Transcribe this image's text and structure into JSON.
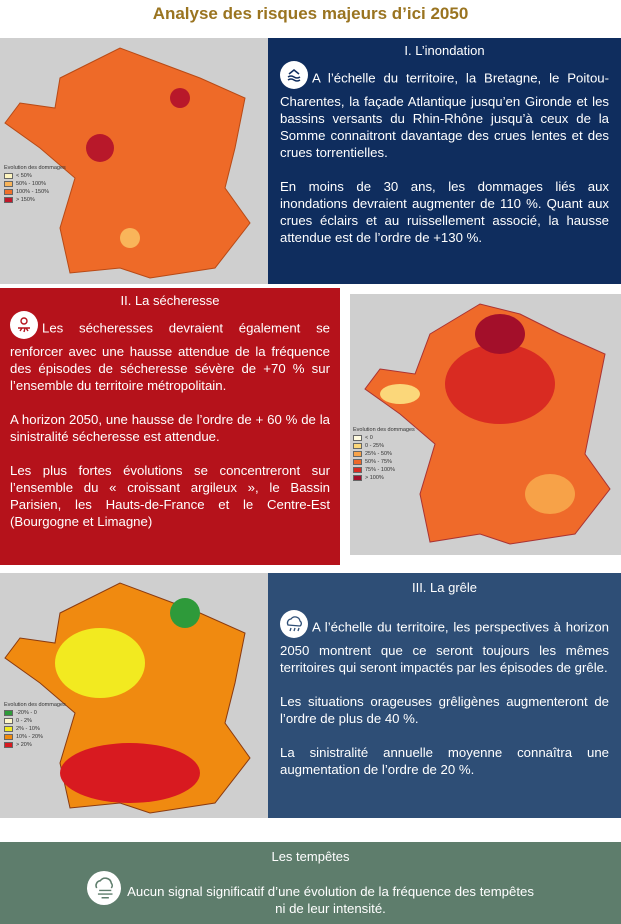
{
  "title": "Analyse des risques majeurs d’ici 2050",
  "inondation": {
    "heading": "I. L’inondation",
    "icon": "flood-icon",
    "paragraphs": [
      "A l’échelle du territoire, la Bretagne, le Poitou-Charentes, la façade Atlantique jusqu’en Gironde et les bassins versants du Rhin-Rhône jusqu’à ceux de la Somme connaitront davantage des crues lentes et des crues torrentielles.",
      "En moins de 30 ans, les dommages liés aux inondations devraient augmenter de 110 %. Quant aux crues éclairs et au ruissellement associé, la hausse attendue est de l’ordre de +130 %."
    ],
    "legend": {
      "title": "Evolution des dommages",
      "items": [
        {
          "label": "< 50%",
          "color": "#fdf5c0"
        },
        {
          "label": "50% - 100%",
          "color": "#f9b55a"
        },
        {
          "label": "100% - 150%",
          "color": "#f0702a"
        },
        {
          "label": "> 150%",
          "color": "#c0182a"
        }
      ]
    },
    "color": "#0f2d5e"
  },
  "secheresse": {
    "heading": "II. La sécheresse",
    "icon": "drought-icon",
    "paragraphs": [
      "Les sécheresses devraient également se renforcer avec une hausse attendue de la fréquence des épisodes de sécheresse sévère de +70 % sur l’ensemble du territoire métropolitain.",
      "A horizon 2050, une hausse de l’ordre de + 60 % de la sinistralité sécheresse est attendue.",
      "Les plus fortes évolutions se concentreront sur l’ensemble du « croissant argileux », le Bassin Parisien, les Hauts-de-France et le Centre-Est (Bourgogne et Limagne)"
    ],
    "legend": {
      "title": "Evolution des dommages",
      "items": [
        {
          "label": "< 0",
          "color": "#fffbe0"
        },
        {
          "label": "0 - 25%",
          "color": "#fbd77a"
        },
        {
          "label": "25% - 50%",
          "color": "#f7a248"
        },
        {
          "label": "50% - 75%",
          "color": "#ef6a2a"
        },
        {
          "label": "75% - 100%",
          "color": "#d92b22"
        },
        {
          "label": "> 100%",
          "color": "#a30f2a"
        }
      ]
    },
    "color": "#b5121b"
  },
  "grele": {
    "heading": "III. La grêle",
    "icon": "hail-icon",
    "paragraphs": [
      "A l’échelle du territoire, les perspectives à horizon 2050 montrent que ce seront toujours les mêmes territoires qui seront impactés par les épisodes de grêle.",
      "Les situations orageuses grêligènes augmenteront de l’ordre de plus de 40 %.",
      "La sinistralité annuelle moyenne connaîtra une augmentation de l’ordre de 20 %."
    ],
    "legend": {
      "title": "Evolution des dommages",
      "items": [
        {
          "label": "-20% - 0",
          "color": "#2e9a3a"
        },
        {
          "label": "0 - 2%",
          "color": "#fdf6c8"
        },
        {
          "label": "2% - 10%",
          "color": "#f2ea20"
        },
        {
          "label": "10% - 20%",
          "color": "#f08a10"
        },
        {
          "label": "> 20%",
          "color": "#d81a20"
        }
      ]
    },
    "color": "#2e4e76"
  },
  "tempetes": {
    "heading": "Les tempêtes",
    "icon": "storm-wind-icon",
    "text_line1": "Aucun signal significatif d’une évolution de la fréquence des tempêtes",
    "text_line2": "ni de leur intensité.",
    "color": "#5e7d6c"
  }
}
